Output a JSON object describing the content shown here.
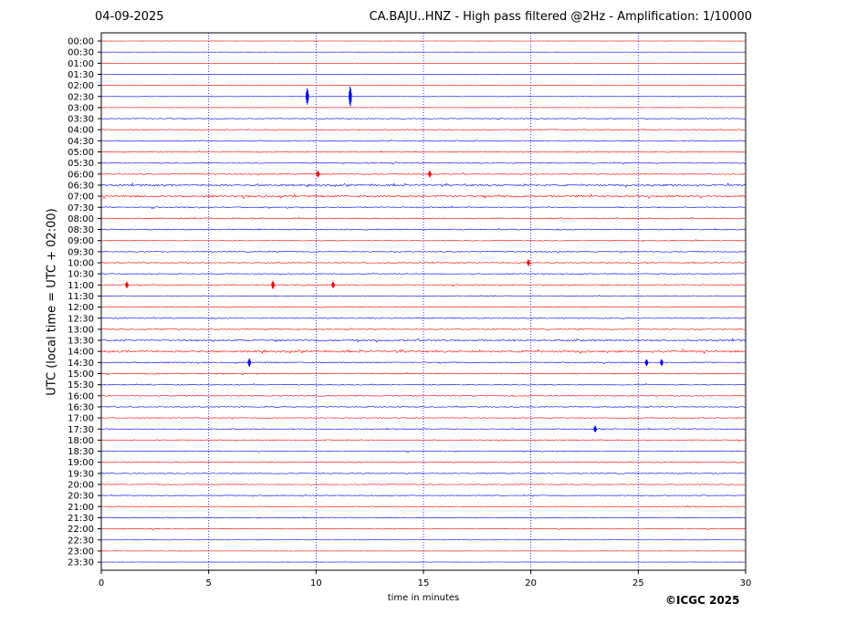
{
  "header": {
    "date": "04-09-2025",
    "title": "CA.BAJU..HNZ - High pass filtered @2Hz - Amplification: 1/10000"
  },
  "footer": {
    "copyright": "©ICGC 2025"
  },
  "colors": {
    "odd_trace": "#ff0000",
    "even_trace": "#0000ff",
    "grid": "#0000ff"
  },
  "chart_data": {
    "type": "line",
    "title": "CA.BAJU..HNZ - High pass filtered @2Hz - Amplification: 1/10000",
    "xlabel": "time in minutes",
    "ylabel": "UTC (local time = UTC + 02:00)",
    "xlim": [
      0,
      30
    ],
    "x_ticks": [
      0,
      5,
      10,
      15,
      20,
      25,
      30
    ],
    "grid": "vertical dotted",
    "y_ticks": [
      "00:00",
      "00:30",
      "01:00",
      "01:30",
      "02:00",
      "02:30",
      "03:00",
      "03:30",
      "04:00",
      "04:30",
      "05:00",
      "05:30",
      "06:00",
      "06:30",
      "07:00",
      "07:30",
      "08:00",
      "08:30",
      "09:00",
      "09:30",
      "10:00",
      "10:30",
      "11:00",
      "11:30",
      "12:00",
      "12:30",
      "13:00",
      "13:30",
      "14:00",
      "14:30",
      "15:00",
      "15:30",
      "16:00",
      "16:30",
      "17:00",
      "17:30",
      "18:00",
      "18:30",
      "19:00",
      "19:30",
      "20:00",
      "20:30",
      "21:00",
      "21:30",
      "22:00",
      "22:30",
      "23:00",
      "23:30"
    ],
    "trace_activity": [
      0.05,
      0.05,
      0.05,
      0.05,
      0.05,
      0.2,
      0.05,
      0.35,
      0.4,
      0.4,
      0.5,
      0.45,
      0.5,
      0.8,
      0.9,
      0.5,
      0.5,
      0.5,
      0.4,
      0.45,
      0.45,
      0.4,
      0.45,
      0.4,
      0.35,
      0.45,
      0.45,
      0.75,
      0.85,
      0.5,
      0.5,
      0.45,
      0.45,
      0.45,
      0.4,
      0.4,
      0.45,
      0.4,
      0.4,
      0.4,
      0.35,
      0.4,
      0.35,
      0.35,
      0.35,
      0.1,
      0.1,
      0.1
    ],
    "events": [
      {
        "row": "02:30",
        "minute": 9.6,
        "amplitude": 10
      },
      {
        "row": "02:30",
        "minute": 11.6,
        "amplitude": 12
      },
      {
        "row": "06:00",
        "minute": 10.1,
        "amplitude": 4
      },
      {
        "row": "06:00",
        "minute": 15.3,
        "amplitude": 4
      },
      {
        "row": "10:00",
        "minute": 19.9,
        "amplitude": 4
      },
      {
        "row": "11:00",
        "minute": 1.2,
        "amplitude": 4
      },
      {
        "row": "11:00",
        "minute": 8.0,
        "amplitude": 5
      },
      {
        "row": "11:00",
        "minute": 10.8,
        "amplitude": 4
      },
      {
        "row": "14:30",
        "minute": 6.9,
        "amplitude": 5
      },
      {
        "row": "14:30",
        "minute": 25.4,
        "amplitude": 4
      },
      {
        "row": "14:30",
        "minute": 26.1,
        "amplitude": 4
      },
      {
        "row": "17:30",
        "minute": 23.0,
        "amplitude": 4
      }
    ]
  }
}
